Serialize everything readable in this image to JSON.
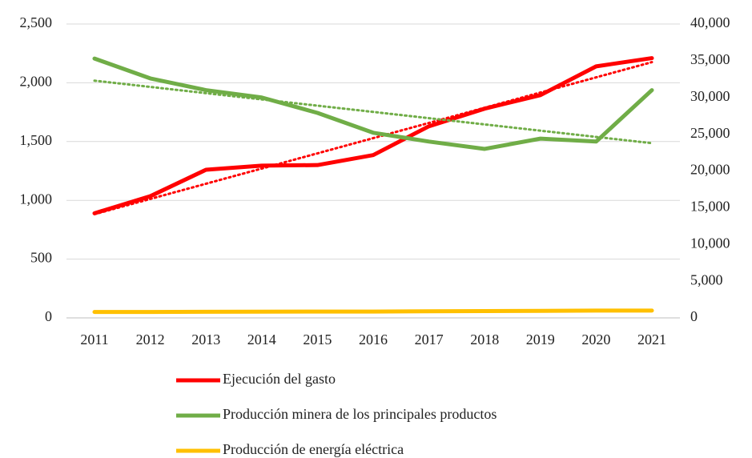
{
  "chart_data": {
    "type": "line",
    "categories": [
      "2011",
      "2012",
      "2013",
      "2014",
      "2015",
      "2016",
      "2017",
      "2018",
      "2019",
      "2020",
      "2021"
    ],
    "series": [
      {
        "name": "Ejecución del gasto",
        "color": "#ff0000",
        "values": [
          890,
          1035,
          1260,
          1295,
          1300,
          1385,
          1630,
          1780,
          1895,
          2140,
          2210
        ]
      },
      {
        "name": "Producción minera de los principales productos",
        "color": "#70ad47",
        "axis": "y2",
        "values": [
          35300,
          32600,
          31000,
          30000,
          27900,
          25200,
          24000,
          23000,
          24400,
          24000,
          31000
        ]
      },
      {
        "name": "Producción de energía eléctrica",
        "color": "#ffc000",
        "values": [
          50,
          50,
          52,
          53,
          54,
          54,
          56,
          58,
          60,
          62,
          62
        ]
      }
    ],
    "ylim": [
      0,
      2500
    ],
    "yticks": [
      0,
      500,
      {
        "value": 1000,
        "label": "1,000"
      },
      {
        "value": 1500,
        "label": "1,500"
      },
      {
        "value": 2000,
        "label": "2,000"
      },
      {
        "value": 2500,
        "label": "2,500"
      }
    ],
    "y2lim": [
      0,
      40000
    ],
    "y2ticks": [
      0,
      {
        "value": 5000,
        "label": "5,000"
      },
      {
        "value": 10000,
        "label": "10,000"
      },
      {
        "value": 15000,
        "label": "15,000"
      },
      {
        "value": 20000,
        "label": "20,000"
      },
      {
        "value": 25000,
        "label": "25,000"
      },
      {
        "value": 30000,
        "label": "30,000"
      },
      {
        "value": 35000,
        "label": "35,000"
      },
      {
        "value": 40000,
        "label": "40,000"
      }
    ],
    "grid": true,
    "trendlines": true,
    "legend": "bottom"
  }
}
